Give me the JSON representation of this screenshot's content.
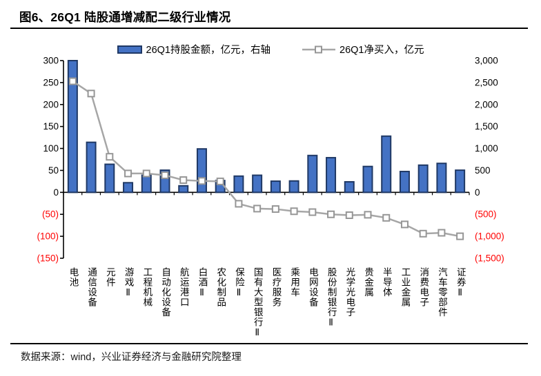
{
  "header": {
    "title": "图6、26Q1 陆股通增减配二级行业情况"
  },
  "footer": {
    "source": "数据来源：wind，兴业证券经济与金融研究院整理"
  },
  "colors": {
    "bar_fill": "#4472C4",
    "bar_border": "#1F3864",
    "line": "#A6A6A6",
    "marker_border": "#969696",
    "marker_fill": "#FFFFFF",
    "axis": "#000000",
    "negative_text": "#FF0000",
    "text": "#000000"
  },
  "chart_data": {
    "type": "bar",
    "subtype": "bar+line-combo",
    "title": "图6、26Q1 陆股通增减配二级行业情况",
    "grid": false,
    "legend_position": "top",
    "categories": [
      "电池",
      "通信设备",
      "元件",
      "游戏Ⅱ",
      "工程机械",
      "自动化设备",
      "航运港口",
      "白酒Ⅱ",
      "农化制品",
      "保险Ⅱ",
      "国有大型银行Ⅱ",
      "医疗服务",
      "乘用车",
      "电网设备",
      "股份制银行Ⅱ",
      "光学光电子",
      "贵金属",
      "半导体",
      "工业金属",
      "消费电子",
      "汽车零部件",
      "证券Ⅱ"
    ],
    "series": [
      {
        "name": "26Q1持股金额，亿元，右轴",
        "type": "bar",
        "axis": "right",
        "values": [
          3000,
          1140,
          640,
          220,
          390,
          505,
          150,
          990,
          270,
          370,
          390,
          255,
          260,
          840,
          790,
          240,
          590,
          1280,
          475,
          620,
          660,
          505
        ]
      },
      {
        "name": "26Q1净买入，亿元",
        "type": "line",
        "axis": "left",
        "values": [
          253,
          225,
          81,
          43,
          43,
          39,
          28,
          26,
          25,
          -26,
          -37,
          -38,
          -43,
          -45,
          -50,
          -52,
          -51,
          -58,
          -73,
          -94,
          -92,
          -100
        ]
      }
    ],
    "left_axis": {
      "min": -150,
      "max": 300,
      "step": 50,
      "tick_labels": [
        "300",
        "250",
        "200",
        "150",
        "100",
        "50",
        "0",
        "(50)",
        "(100)",
        "(150)"
      ]
    },
    "right_axis": {
      "min": -1500,
      "max": 3000,
      "step": 500,
      "tick_labels": [
        "3,000",
        "2,500",
        "2,000",
        "1,500",
        "1,000",
        "500",
        "0",
        "(500)",
        "(1,000)",
        "(1,500)"
      ]
    }
  }
}
